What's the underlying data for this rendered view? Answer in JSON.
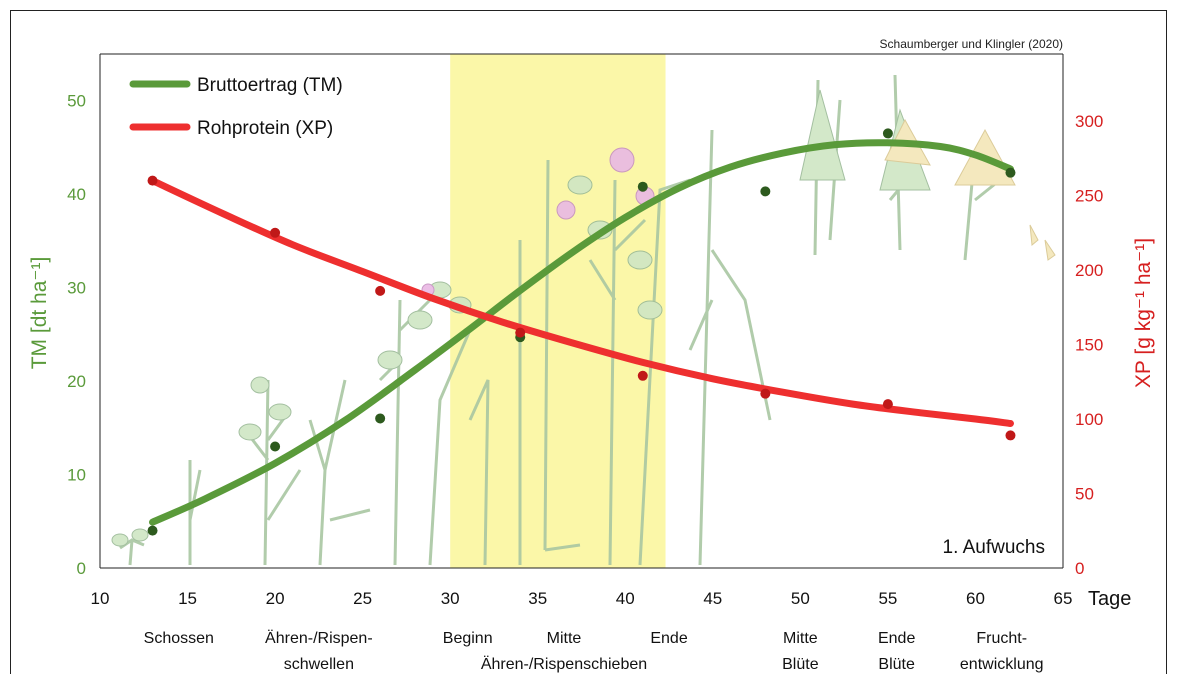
{
  "chart_data": {
    "type": "line",
    "source": "Schaumberger und Klingler (2020)",
    "annotation": "1. Aufwuchs",
    "xlabel": "Tage",
    "ylabel_left": "TM [dt ha⁻¹]",
    "ylabel_right": "XP [g kg⁻¹ ha⁻¹]",
    "xlim": [
      10,
      65
    ],
    "ylim_left": [
      0,
      55
    ],
    "ylim_right": [
      0,
      345
    ],
    "x_ticks": [
      10,
      15,
      20,
      25,
      30,
      35,
      40,
      45,
      50,
      55,
      60,
      65
    ],
    "y_left_ticks": [
      0,
      10,
      20,
      30,
      40,
      50
    ],
    "y_right_ticks": [
      0,
      50,
      100,
      150,
      200,
      250,
      300
    ],
    "highlight_band": [
      30,
      42.3
    ],
    "legend": [
      {
        "label": "Bruttoertrag (TM)",
        "color": "#5a9a3a"
      },
      {
        "label": "Rohprotein (XP)",
        "color": "#ee2f2f"
      }
    ],
    "series": [
      {
        "name": "Bruttoertrag (TM)",
        "axis": "left",
        "color": "#5a9a3a",
        "point_color": "#2d5a1e",
        "points": [
          [
            13,
            4
          ],
          [
            20,
            13
          ],
          [
            26,
            16
          ],
          [
            34,
            24.7
          ],
          [
            41,
            40.8
          ],
          [
            48,
            40.3
          ],
          [
            55,
            46.5
          ],
          [
            62,
            42.3
          ]
        ],
        "fit": [
          [
            13,
            4.9
          ],
          [
            16,
            7.4
          ],
          [
            20,
            11.2
          ],
          [
            24,
            15.8
          ],
          [
            28,
            21.2
          ],
          [
            31,
            25.4
          ],
          [
            34,
            29.7
          ],
          [
            37,
            33.8
          ],
          [
            40,
            37.5
          ],
          [
            43,
            40.6
          ],
          [
            46,
            42.9
          ],
          [
            49,
            44.4
          ],
          [
            52,
            45.3
          ],
          [
            55,
            45.5
          ],
          [
            58,
            45.1
          ],
          [
            60,
            44.2
          ],
          [
            62,
            42.7
          ]
        ]
      },
      {
        "name": "Rohprotein (XP)",
        "axis": "right",
        "color": "#ee2f2f",
        "point_color": "#c01818",
        "points": [
          [
            13,
            260
          ],
          [
            20,
            225
          ],
          [
            26,
            186
          ],
          [
            34,
            158
          ],
          [
            41,
            129
          ],
          [
            48,
            117
          ],
          [
            55,
            110
          ],
          [
            62,
            89
          ]
        ],
        "fit": [
          [
            13,
            260
          ],
          [
            17,
            238
          ],
          [
            21,
            217
          ],
          [
            25,
            199
          ],
          [
            29,
            181
          ],
          [
            33,
            165
          ],
          [
            37,
            151
          ],
          [
            41,
            138
          ],
          [
            45,
            127
          ],
          [
            49,
            118
          ],
          [
            53,
            110
          ],
          [
            57,
            104
          ],
          [
            60,
            100
          ],
          [
            62,
            97
          ]
        ]
      }
    ],
    "stage_labels": [
      {
        "x": 14.5,
        "lines": [
          "Schossen"
        ]
      },
      {
        "x": 22.5,
        "lines": [
          "Ähren-/Rispen-",
          "schwellen"
        ]
      },
      {
        "x": 31,
        "lines": [
          "Beginn"
        ]
      },
      {
        "x": 36.5,
        "lines": [
          "Mitte"
        ]
      },
      {
        "x": 42.5,
        "lines": [
          "Ende"
        ]
      },
      {
        "x": 36.5,
        "lines": [
          "",
          "Ähren-/Rispenschieben"
        ]
      },
      {
        "x": 50,
        "lines": [
          "Mitte",
          "Blüte"
        ]
      },
      {
        "x": 55.5,
        "lines": [
          "Ende",
          "Blüte"
        ]
      },
      {
        "x": 61.5,
        "lines": [
          "Frucht-",
          "entwicklung"
        ]
      }
    ]
  }
}
